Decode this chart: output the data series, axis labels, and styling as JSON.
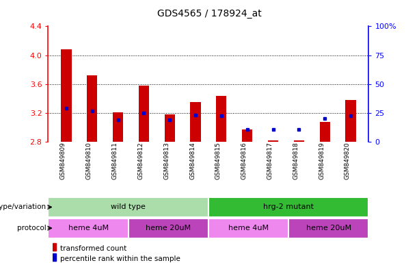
{
  "title": "GDS4565 / 178924_at",
  "samples": [
    "GSM849809",
    "GSM849810",
    "GSM849811",
    "GSM849812",
    "GSM849813",
    "GSM849814",
    "GSM849815",
    "GSM849816",
    "GSM849817",
    "GSM849818",
    "GSM849819",
    "GSM849820"
  ],
  "red_values": [
    4.08,
    3.72,
    3.21,
    3.58,
    3.18,
    3.35,
    3.44,
    2.97,
    2.82,
    2.82,
    3.08,
    3.38
  ],
  "blue_values": [
    3.27,
    3.23,
    3.11,
    3.2,
    3.11,
    3.17,
    3.16,
    2.97,
    2.97,
    2.97,
    3.13,
    3.16
  ],
  "ymin": 2.8,
  "ymax": 4.4,
  "yticks_left": [
    2.8,
    3.2,
    3.6,
    4.0,
    4.4
  ],
  "yticks_right": [
    0,
    25,
    50,
    75,
    100
  ],
  "genotype_groups": [
    {
      "label": "wild type",
      "start": 0,
      "end": 6,
      "color": "#aaddaa"
    },
    {
      "label": "hrg-2 mutant",
      "start": 6,
      "end": 12,
      "color": "#33bb33"
    }
  ],
  "protocol_groups": [
    {
      "label": "heme 4uM",
      "start": 0,
      "end": 3,
      "color": "#ee88ee"
    },
    {
      "label": "heme 20uM",
      "start": 3,
      "end": 6,
      "color": "#bb44bb"
    },
    {
      "label": "heme 4uM",
      "start": 6,
      "end": 9,
      "color": "#ee88ee"
    },
    {
      "label": "heme 20uM",
      "start": 9,
      "end": 12,
      "color": "#bb44bb"
    }
  ],
  "red_color": "#cc0000",
  "blue_color": "#0000cc",
  "bar_width": 0.4,
  "bg_color": "#ffffff",
  "legend_red": "transformed count",
  "legend_blue": "percentile rank within the sample",
  "grid_lines": [
    3.2,
    3.6,
    4.0
  ]
}
